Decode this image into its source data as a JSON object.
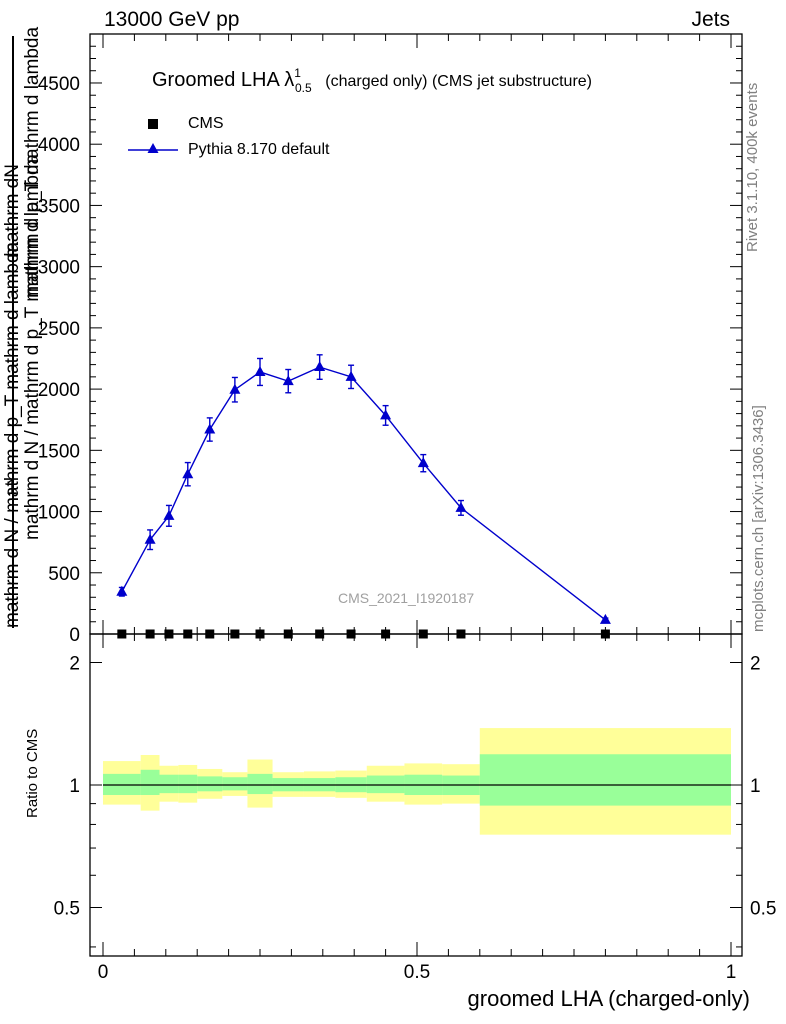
{
  "header": {
    "left": "13000 GeV pp",
    "right": "Jets"
  },
  "side_labels": {
    "rivet": "Rivet 3.1.10,  400k events",
    "mcplots": "mcplots.cern.ch [arXiv:1306.3436]"
  },
  "chart_data": [
    {
      "type": "line",
      "title": "Groomed LHA λ^1_0.5  (charged only) (CMS jet substructure)",
      "title_main": "Groomed LHA λ",
      "title_sup": "1",
      "title_sub": "0.5",
      "title_tail": "(charged only) (CMS jet substructure)",
      "watermark": "CMS_2021_I1920187",
      "ylabel_top": "mathrm dN",
      "ylabel_bottom": "mathrm d p_T mathrm d lambda",
      "ylabel_full": "mathrm d N / mathrm d p_T mathrm d lambda",
      "ylabel_one": "1",
      "ylabel_inner": "mathrm d N / mathrm d p_T mathrm d lambda",
      "xlim": [
        0,
        1
      ],
      "ylim": [
        0,
        4900
      ],
      "yticks": [
        0,
        500,
        1000,
        1500,
        2000,
        2500,
        3000,
        3500,
        4000,
        4500
      ],
      "legend": {
        "placement": "top-left"
      },
      "series": [
        {
          "name": "CMS",
          "marker": "square",
          "color": "#000000",
          "x": [
            0.03,
            0.075,
            0.105,
            0.135,
            0.17,
            0.21,
            0.25,
            0.295,
            0.345,
            0.395,
            0.45,
            0.51,
            0.57,
            0.8
          ],
          "y": [
            0,
            0,
            0,
            0,
            0,
            0,
            0,
            0,
            0,
            0,
            0,
            0,
            0,
            0
          ]
        },
        {
          "name": "Pythia 8.170 default",
          "marker": "triangle",
          "color": "#0000cc",
          "x": [
            0.03,
            0.075,
            0.105,
            0.135,
            0.17,
            0.21,
            0.25,
            0.295,
            0.345,
            0.395,
            0.45,
            0.51,
            0.57,
            0.8
          ],
          "y": [
            345,
            770,
            965,
            1305,
            1670,
            1995,
            2140,
            2065,
            2180,
            2100,
            1785,
            1395,
            1030,
            115
          ],
          "yerr": [
            35,
            80,
            85,
            95,
            95,
            100,
            110,
            95,
            100,
            95,
            80,
            70,
            60,
            15
          ]
        }
      ]
    },
    {
      "type": "area",
      "ylabel": "Ratio to CMS",
      "xlabel": "groomed LHA (charged-only)",
      "xlim": [
        0,
        1
      ],
      "ylim": [
        0.38,
        2.35
      ],
      "yscale": "log",
      "xticks": [
        "0",
        "0.5",
        "1"
      ],
      "yticks": [
        "0.5",
        "1",
        "2"
      ],
      "colors": {
        "inner_band": "#99ff99",
        "outer_band": "#ffff99",
        "line": "#000000"
      },
      "bins": [
        {
          "x0": 0.0,
          "x1": 0.06,
          "inner": [
            0.945,
            1.065
          ],
          "outer": [
            0.895,
            1.145
          ]
        },
        {
          "x0": 0.06,
          "x1": 0.09,
          "inner": [
            0.945,
            1.09
          ],
          "outer": [
            0.865,
            1.185
          ]
        },
        {
          "x0": 0.09,
          "x1": 0.12,
          "inner": [
            0.955,
            1.06
          ],
          "outer": [
            0.91,
            1.115
          ]
        },
        {
          "x0": 0.12,
          "x1": 0.15,
          "inner": [
            0.955,
            1.06
          ],
          "outer": [
            0.905,
            1.12
          ]
        },
        {
          "x0": 0.15,
          "x1": 0.19,
          "inner": [
            0.965,
            1.05
          ],
          "outer": [
            0.925,
            1.095
          ]
        },
        {
          "x0": 0.19,
          "x1": 0.23,
          "inner": [
            0.97,
            1.045
          ],
          "outer": [
            0.94,
            1.075
          ]
        },
        {
          "x0": 0.23,
          "x1": 0.27,
          "inner": [
            0.95,
            1.065
          ],
          "outer": [
            0.88,
            1.155
          ]
        },
        {
          "x0": 0.27,
          "x1": 0.32,
          "inner": [
            0.965,
            1.04
          ],
          "outer": [
            0.935,
            1.075
          ]
        },
        {
          "x0": 0.32,
          "x1": 0.37,
          "inner": [
            0.965,
            1.04
          ],
          "outer": [
            0.935,
            1.08
          ]
        },
        {
          "x0": 0.37,
          "x1": 0.42,
          "inner": [
            0.96,
            1.045
          ],
          "outer": [
            0.93,
            1.085
          ]
        },
        {
          "x0": 0.42,
          "x1": 0.48,
          "inner": [
            0.955,
            1.055
          ],
          "outer": [
            0.91,
            1.115
          ]
        },
        {
          "x0": 0.48,
          "x1": 0.54,
          "inner": [
            0.945,
            1.06
          ],
          "outer": [
            0.895,
            1.13
          ]
        },
        {
          "x0": 0.54,
          "x1": 0.6,
          "inner": [
            0.945,
            1.055
          ],
          "outer": [
            0.9,
            1.125
          ]
        },
        {
          "x0": 0.6,
          "x1": 1.0,
          "inner": [
            0.89,
            1.19
          ],
          "outer": [
            0.755,
            1.38
          ]
        }
      ]
    }
  ]
}
